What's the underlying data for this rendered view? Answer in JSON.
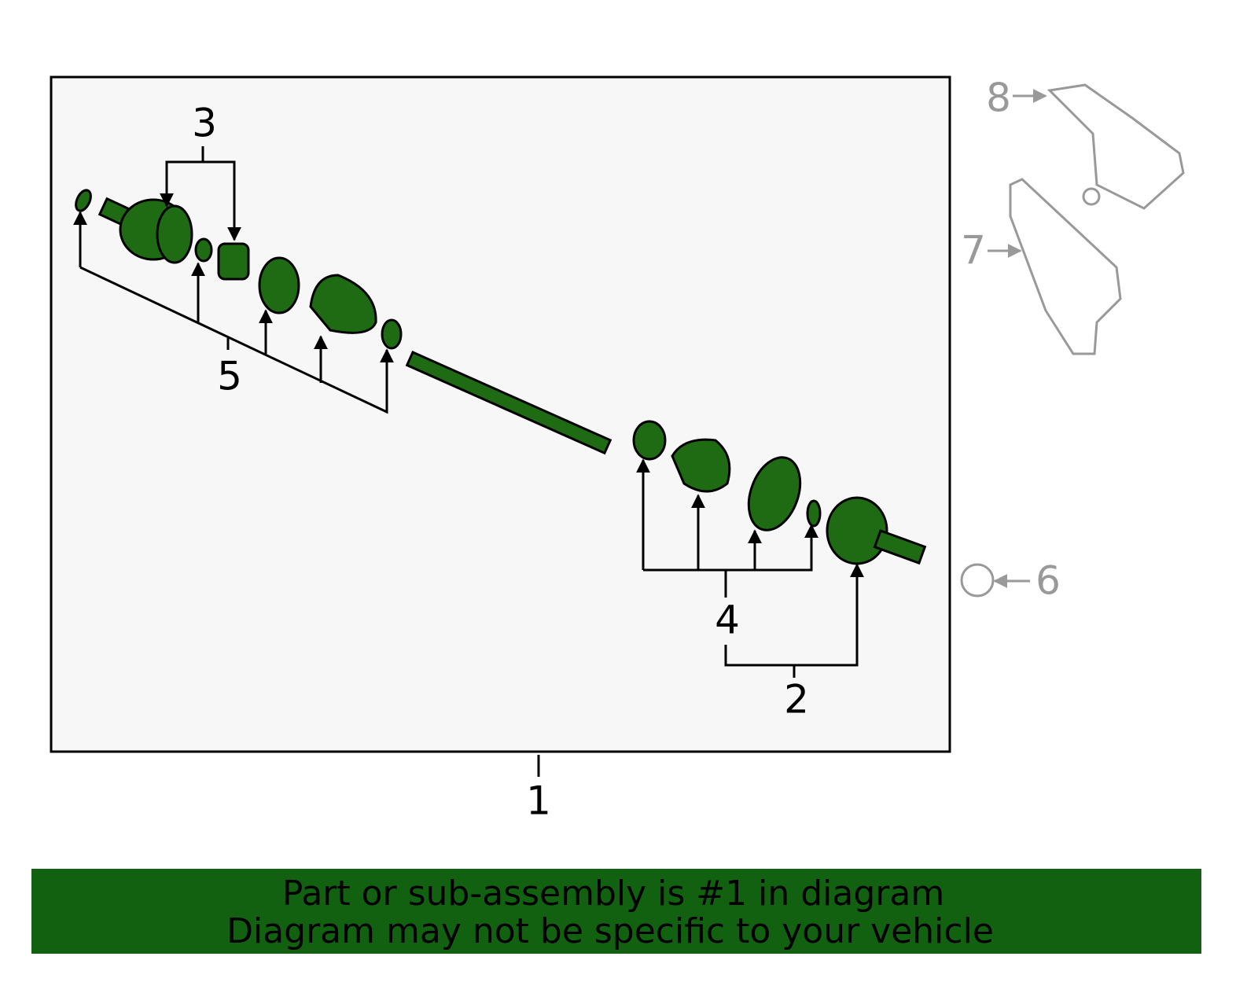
{
  "callouts": [
    {
      "label": "1"
    },
    {
      "label": "2"
    },
    {
      "label": "3"
    },
    {
      "label": "4"
    },
    {
      "label": "5"
    },
    {
      "label": "6"
    },
    {
      "label": "7"
    },
    {
      "label": "8"
    }
  ],
  "banner": {
    "lines": [
      "Part or sub-assembly is #1 in diagram",
      "Diagram may not be specific to your vehicle"
    ]
  }
}
